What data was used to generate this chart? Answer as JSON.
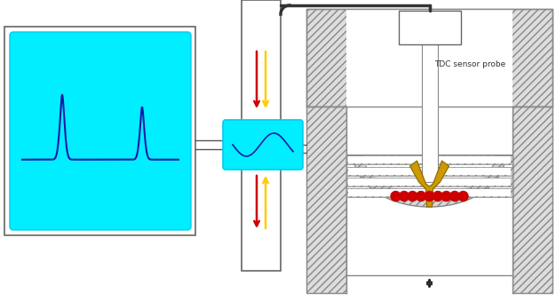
{
  "fig_width": 6.26,
  "fig_height": 3.39,
  "dpi": 100,
  "bg_color": "#ffffff",
  "cyan_color": "#00eeff",
  "dark_blue": "#1a1aaa",
  "red_color": "#cc0000",
  "yellow_color": "#ffcc00",
  "gold_color": "#cc9900",
  "tdc_label": "TDC sensor probe",
  "edge_color": "#888888",
  "hatch_gray": "#cccccc"
}
